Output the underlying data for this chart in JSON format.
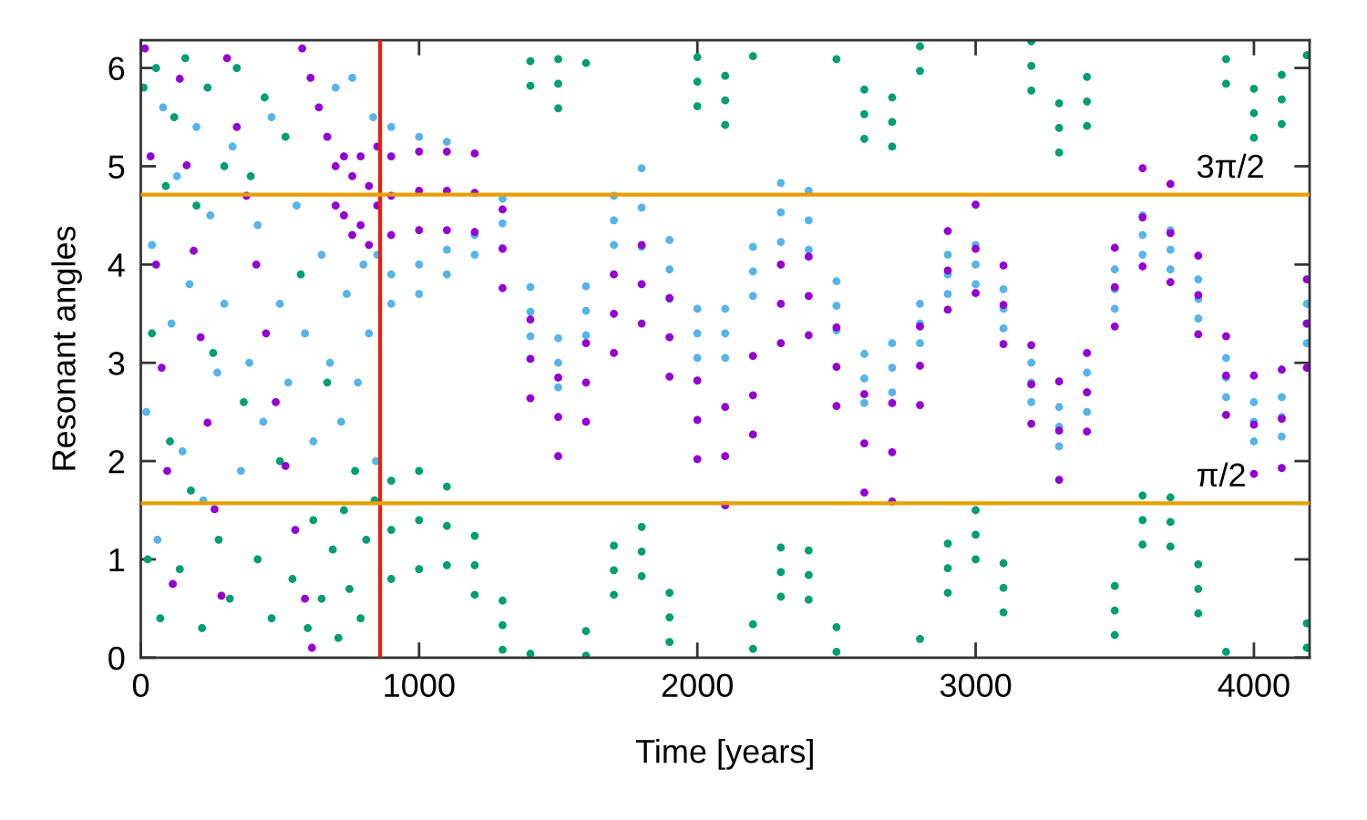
{
  "chart_data": {
    "type": "scatter",
    "xlabel": "Time [years]",
    "ylabel": "Resonant angles",
    "marker": "circle",
    "xlim": [
      0,
      4200
    ],
    "xticks": [
      0,
      1000,
      2000,
      3000,
      4000
    ],
    "ylim": [
      0,
      6.283
    ],
    "yticks": [
      0,
      1,
      2,
      3,
      4,
      5,
      6
    ],
    "ref_lines": [
      {
        "axis": "x",
        "value": 860,
        "color": "#e51e10"
      },
      {
        "axis": "y",
        "value": 4.712,
        "label": "3π/2",
        "color": "#e69f00"
      },
      {
        "axis": "y",
        "value": 1.571,
        "label": "π/2",
        "color": "#e69f00"
      }
    ],
    "series": [
      {
        "color": "#009e73",
        "x": [
          10,
          25,
          40,
          55,
          70,
          90,
          105,
          120,
          140,
          160,
          180,
          200,
          220,
          240,
          260,
          280,
          300,
          320,
          345,
          370,
          395,
          420,
          445,
          470,
          500,
          520,
          545,
          575,
          600,
          620,
          650,
          670,
          690,
          710,
          730,
          750,
          770,
          790,
          810,
          840,
          900,
          900,
          900,
          1000,
          1000,
          1000,
          1100,
          1100,
          1100,
          1200,
          1200,
          1200,
          1300,
          1300,
          1300,
          1400,
          1400,
          1400,
          1500,
          1500,
          1500,
          1600,
          1600,
          1600,
          1700,
          1700,
          1700,
          1800,
          1800,
          1800,
          1900,
          1900,
          1900,
          2000,
          2000,
          2000,
          2100,
          2100,
          2100,
          2200,
          2200,
          2200,
          2300,
          2300,
          2300,
          2400,
          2400,
          2400,
          2500,
          2500,
          2500,
          2600,
          2600,
          2600,
          2700,
          2700,
          2700,
          2800,
          2800,
          2800,
          2900,
          2900,
          2900,
          3000,
          3000,
          3000,
          3100,
          3100,
          3100,
          3200,
          3200,
          3200,
          3300,
          3300,
          3300,
          3400,
          3400,
          3400,
          3500,
          3500,
          3500,
          3600,
          3600,
          3600,
          3700,
          3700,
          3700,
          3800,
          3800,
          3800,
          3900,
          3900,
          3900,
          4000,
          4000,
          4000,
          4100,
          4100,
          4100,
          4190,
          4190,
          4190
        ],
        "values": [
          5.8,
          1.0,
          3.3,
          6.0,
          0.4,
          4.8,
          2.2,
          5.5,
          0.9,
          6.1,
          1.7,
          4.6,
          0.3,
          5.8,
          3.1,
          1.2,
          5.0,
          0.6,
          6.0,
          2.6,
          4.9,
          1.0,
          5.7,
          0.4,
          2.0,
          5.3,
          0.8,
          3.9,
          0.3,
          1.4,
          0.6,
          2.8,
          1.1,
          0.2,
          1.5,
          0.7,
          1.9,
          0.4,
          1.2,
          1.6,
          1.8,
          1.3,
          0.8,
          1.9,
          1.4,
          0.9,
          1.74,
          1.34,
          0.94,
          1.24,
          0.94,
          0.64,
          0.58,
          0.33,
          0.08,
          0.04,
          6.07,
          5.82,
          6.09,
          5.84,
          5.59,
          0.27,
          0.02,
          6.05,
          1.14,
          0.89,
          0.64,
          1.33,
          1.08,
          0.83,
          0.66,
          0.41,
          0.16,
          6.11,
          5.86,
          5.61,
          5.92,
          5.67,
          5.42,
          0.34,
          0.09,
          6.12,
          1.12,
          0.87,
          0.62,
          1.09,
          0.84,
          0.59,
          0.31,
          0.06,
          6.09,
          5.78,
          5.53,
          5.28,
          5.7,
          5.45,
          5.2,
          0.19,
          6.22,
          5.97,
          1.16,
          0.91,
          0.66,
          1.5,
          1.25,
          1.0,
          0.96,
          0.71,
          0.46,
          6.27,
          6.02,
          5.77,
          5.64,
          5.39,
          5.14,
          5.91,
          5.66,
          5.41,
          0.73,
          0.48,
          0.23,
          1.65,
          1.4,
          1.15,
          1.63,
          1.38,
          1.13,
          0.95,
          0.7,
          0.45,
          0.06,
          6.09,
          5.84,
          5.79,
          5.54,
          5.29,
          5.93,
          5.68,
          5.43,
          0.35,
          0.1,
          6.13
        ]
      },
      {
        "color": "#56b4e9",
        "x": [
          20,
          40,
          60,
          80,
          110,
          130,
          150,
          175,
          200,
          225,
          250,
          275,
          300,
          330,
          360,
          390,
          420,
          440,
          470,
          500,
          530,
          560,
          590,
          620,
          650,
          680,
          700,
          720,
          740,
          760,
          780,
          800,
          820,
          835,
          845,
          850,
          900,
          900,
          900,
          1000,
          1000,
          1000,
          1100,
          1100,
          1100,
          1200,
          1200,
          1300,
          1300,
          1300,
          1400,
          1400,
          1400,
          1500,
          1500,
          1500,
          1600,
          1600,
          1600,
          1700,
          1700,
          1700,
          1800,
          1800,
          1800,
          1900,
          1900,
          1900,
          2000,
          2000,
          2000,
          2100,
          2100,
          2100,
          2200,
          2200,
          2200,
          2300,
          2300,
          2300,
          2400,
          2400,
          2400,
          2500,
          2500,
          2500,
          2600,
          2600,
          2600,
          2700,
          2700,
          2700,
          2800,
          2800,
          2800,
          2900,
          2900,
          2900,
          3000,
          3000,
          3000,
          3100,
          3100,
          3100,
          3200,
          3200,
          3200,
          3300,
          3300,
          3300,
          3400,
          3400,
          3400,
          3500,
          3500,
          3500,
          3600,
          3600,
          3600,
          3700,
          3700,
          3700,
          3800,
          3800,
          3800,
          3900,
          3900,
          3900,
          4000,
          4000,
          4000,
          4100,
          4100,
          4100,
          4190,
          4190,
          4190
        ],
        "values": [
          2.5,
          4.2,
          1.2,
          5.6,
          3.4,
          4.9,
          2.1,
          3.8,
          5.4,
          1.6,
          4.5,
          2.9,
          3.6,
          5.2,
          1.9,
          3.0,
          4.4,
          2.4,
          5.5,
          3.6,
          2.8,
          4.6,
          3.3,
          2.2,
          4.1,
          3.0,
          5.8,
          2.4,
          3.7,
          5.9,
          2.8,
          4.0,
          3.3,
          5.5,
          2.0,
          4.1,
          5.4,
          3.9,
          3.6,
          5.3,
          4.0,
          3.7,
          5.25,
          4.15,
          3.9,
          4.3,
          4.1,
          4.67,
          4.42,
          4.17,
          3.77,
          3.52,
          3.27,
          3.25,
          3.0,
          2.75,
          3.78,
          3.53,
          3.28,
          4.7,
          4.45,
          4.2,
          4.98,
          4.58,
          4.18,
          4.25,
          3.95,
          3.65,
          3.55,
          3.3,
          3.05,
          3.55,
          3.3,
          3.05,
          4.18,
          3.93,
          3.68,
          4.83,
          4.53,
          4.23,
          4.75,
          4.45,
          4.15,
          3.83,
          3.58,
          3.33,
          3.09,
          2.84,
          2.59,
          3.2,
          2.95,
          2.7,
          3.6,
          3.4,
          3.2,
          4.1,
          3.9,
          3.7,
          4.2,
          4.0,
          3.8,
          3.75,
          3.55,
          3.35,
          3.0,
          2.8,
          2.6,
          2.55,
          2.35,
          2.15,
          2.9,
          2.7,
          2.5,
          3.95,
          3.75,
          3.55,
          4.5,
          4.3,
          4.1,
          4.35,
          4.15,
          3.95,
          3.85,
          3.65,
          3.45,
          3.05,
          2.85,
          2.65,
          2.6,
          2.4,
          2.2,
          2.65,
          2.45,
          2.25,
          3.6,
          3.4,
          3.2
        ]
      },
      {
        "color": "#9400d3",
        "x": [
          15,
          35,
          55,
          75,
          95,
          115,
          140,
          165,
          190,
          215,
          240,
          265,
          290,
          310,
          345,
          380,
          415,
          450,
          485,
          520,
          555,
          590,
          615,
          580,
          610,
          640,
          670,
          700,
          700,
          730,
          730,
          760,
          760,
          790,
          790,
          820,
          820,
          850,
          850,
          900,
          900,
          900,
          1000,
          1000,
          1000,
          1100,
          1100,
          1100,
          1200,
          1200,
          1200,
          1300,
          1300,
          1300,
          1400,
          1400,
          1400,
          1500,
          1500,
          1500,
          1600,
          1600,
          1600,
          1700,
          1700,
          1700,
          1800,
          1800,
          1800,
          1900,
          1900,
          1900,
          2000,
          2000,
          2000,
          2100,
          2100,
          2100,
          2200,
          2200,
          2200,
          2300,
          2300,
          2300,
          2400,
          2400,
          2400,
          2500,
          2500,
          2500,
          2600,
          2600,
          2600,
          2700,
          2700,
          2700,
          2800,
          2800,
          2800,
          2900,
          2900,
          2900,
          3000,
          3000,
          3000,
          3100,
          3100,
          3100,
          3200,
          3200,
          3200,
          3300,
          3300,
          3300,
          3400,
          3400,
          3400,
          3500,
          3500,
          3500,
          3600,
          3600,
          3600,
          3700,
          3700,
          3700,
          3800,
          3800,
          3800,
          3900,
          3900,
          3900,
          4000,
          4000,
          4000,
          4100,
          4100,
          4100,
          4190,
          4190,
          4190
        ],
        "values": [
          6.2,
          5.1,
          4.0,
          2.95,
          1.9,
          0.75,
          5.89,
          5.01,
          4.14,
          3.26,
          2.39,
          1.51,
          0.63,
          6.1,
          5.4,
          4.7,
          4.0,
          3.3,
          2.6,
          1.95,
          1.3,
          0.6,
          0.1,
          6.2,
          5.9,
          5.6,
          5.3,
          5.0,
          4.6,
          5.1,
          4.5,
          4.9,
          4.3,
          5.1,
          4.4,
          4.8,
          4.2,
          5.2,
          4.6,
          5.1,
          4.7,
          4.3,
          5.15,
          4.75,
          4.35,
          5.15,
          4.75,
          4.35,
          5.13,
          4.73,
          4.33,
          4.56,
          4.16,
          3.76,
          3.44,
          3.04,
          2.64,
          2.85,
          2.45,
          2.05,
          3.2,
          2.8,
          2.4,
          3.9,
          3.5,
          3.1,
          4.2,
          3.8,
          3.4,
          3.66,
          3.26,
          2.86,
          2.82,
          2.42,
          2.02,
          2.55,
          2.05,
          1.55,
          3.07,
          2.67,
          2.27,
          4.0,
          3.6,
          3.2,
          4.08,
          3.68,
          3.28,
          3.36,
          2.96,
          2.56,
          2.68,
          2.18,
          1.68,
          2.59,
          2.09,
          1.59,
          3.37,
          2.97,
          2.57,
          4.34,
          3.94,
          3.54,
          4.61,
          4.16,
          3.71,
          3.99,
          3.59,
          3.19,
          3.18,
          2.78,
          2.38,
          2.81,
          2.31,
          1.81,
          3.1,
          2.7,
          2.3,
          4.17,
          3.77,
          3.37,
          4.98,
          4.48,
          3.98,
          4.82,
          4.32,
          3.82,
          4.09,
          3.69,
          3.29,
          3.27,
          2.87,
          2.47,
          2.87,
          2.37,
          1.87,
          2.93,
          2.43,
          1.93,
          3.85,
          3.4,
          2.95
        ]
      }
    ]
  }
}
